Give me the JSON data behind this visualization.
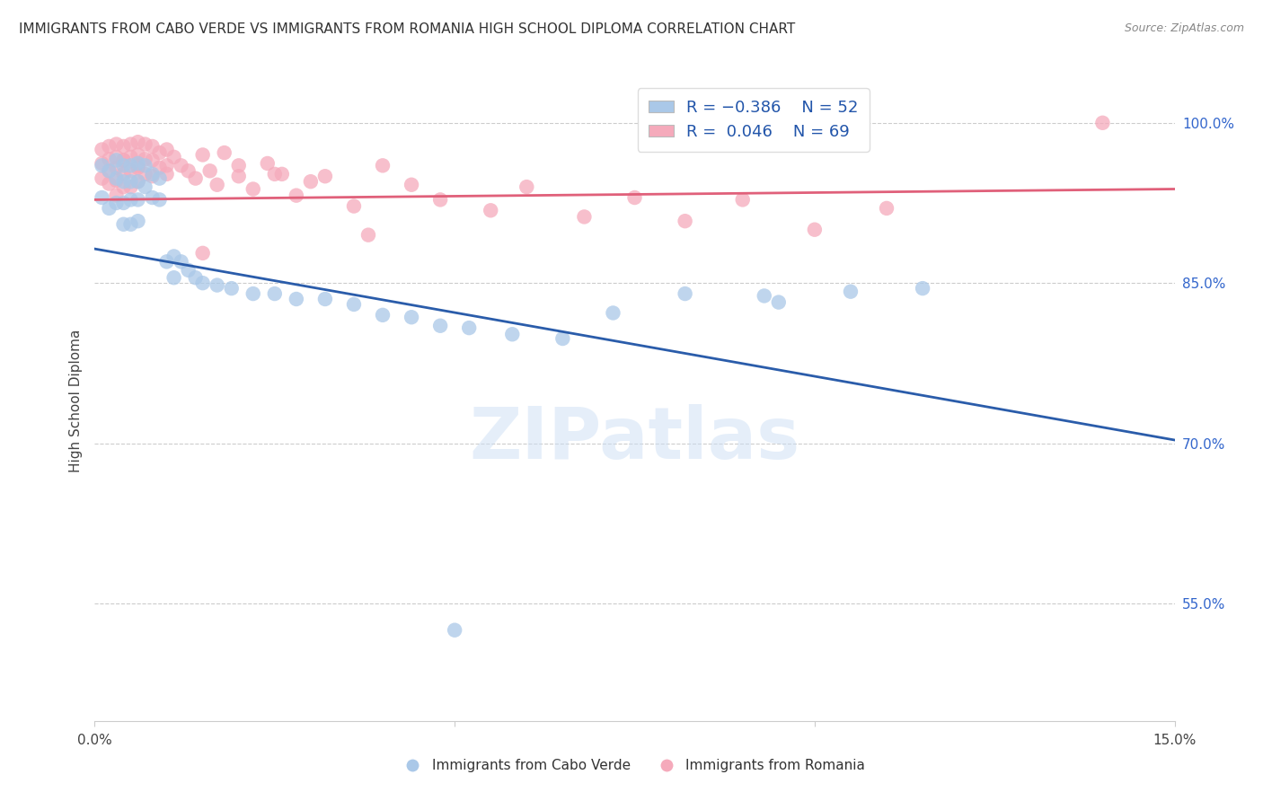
{
  "title": "IMMIGRANTS FROM CABO VERDE VS IMMIGRANTS FROM ROMANIA HIGH SCHOOL DIPLOMA CORRELATION CHART",
  "source": "Source: ZipAtlas.com",
  "ylabel": "High School Diploma",
  "yticks": [
    0.55,
    0.7,
    0.85,
    1.0
  ],
  "ytick_labels": [
    "55.0%",
    "70.0%",
    "85.0%",
    "100.0%"
  ],
  "xlim": [
    0.0,
    0.15
  ],
  "ylim": [
    0.44,
    1.04
  ],
  "legend_blue_r": "R = −0.386",
  "legend_blue_n": "N = 52",
  "legend_pink_r": "R =  0.046",
  "legend_pink_n": "N = 69",
  "legend_blue_label": "Immigrants from Cabo Verde",
  "legend_pink_label": "Immigrants from Romania",
  "blue_color": "#aac8e8",
  "pink_color": "#f5aabb",
  "blue_line_color": "#2a5caa",
  "pink_line_color": "#e0607a",
  "watermark_text": "ZIPatlas",
  "blue_line_x": [
    0.0,
    0.15
  ],
  "blue_line_y": [
    0.882,
    0.703
  ],
  "pink_line_x": [
    0.0,
    0.15
  ],
  "pink_line_y": [
    0.928,
    0.938
  ],
  "cabo_verde_x": [
    0.001,
    0.001,
    0.002,
    0.002,
    0.003,
    0.003,
    0.003,
    0.004,
    0.004,
    0.004,
    0.004,
    0.005,
    0.005,
    0.005,
    0.005,
    0.006,
    0.006,
    0.006,
    0.006,
    0.007,
    0.007,
    0.008,
    0.008,
    0.009,
    0.009,
    0.01,
    0.011,
    0.011,
    0.012,
    0.013,
    0.014,
    0.015,
    0.017,
    0.019,
    0.022,
    0.025,
    0.028,
    0.032,
    0.036,
    0.04,
    0.044,
    0.048,
    0.052,
    0.05,
    0.058,
    0.065,
    0.072,
    0.082,
    0.093,
    0.095,
    0.105,
    0.115
  ],
  "cabo_verde_y": [
    0.96,
    0.93,
    0.955,
    0.92,
    0.965,
    0.948,
    0.925,
    0.96,
    0.945,
    0.925,
    0.905,
    0.96,
    0.945,
    0.928,
    0.905,
    0.962,
    0.945,
    0.928,
    0.908,
    0.96,
    0.94,
    0.952,
    0.93,
    0.948,
    0.928,
    0.87,
    0.875,
    0.855,
    0.87,
    0.862,
    0.855,
    0.85,
    0.848,
    0.845,
    0.84,
    0.84,
    0.835,
    0.835,
    0.83,
    0.82,
    0.818,
    0.81,
    0.808,
    0.525,
    0.802,
    0.798,
    0.822,
    0.84,
    0.838,
    0.832,
    0.842,
    0.845
  ],
  "romania_x": [
    0.001,
    0.001,
    0.001,
    0.002,
    0.002,
    0.002,
    0.002,
    0.003,
    0.003,
    0.003,
    0.003,
    0.003,
    0.004,
    0.004,
    0.004,
    0.004,
    0.005,
    0.005,
    0.005,
    0.005,
    0.006,
    0.006,
    0.006,
    0.006,
    0.007,
    0.007,
    0.007,
    0.008,
    0.008,
    0.008,
    0.009,
    0.009,
    0.01,
    0.01,
    0.011,
    0.012,
    0.013,
    0.014,
    0.015,
    0.016,
    0.017,
    0.018,
    0.02,
    0.022,
    0.024,
    0.026,
    0.028,
    0.032,
    0.036,
    0.04,
    0.044,
    0.048,
    0.055,
    0.06,
    0.068,
    0.075,
    0.082,
    0.09,
    0.1,
    0.11,
    0.038,
    0.03,
    0.025,
    0.02,
    0.015,
    0.01,
    0.006,
    0.004,
    0.14
  ],
  "romania_y": [
    0.975,
    0.962,
    0.948,
    0.978,
    0.966,
    0.955,
    0.943,
    0.98,
    0.968,
    0.958,
    0.946,
    0.932,
    0.978,
    0.965,
    0.952,
    0.94,
    0.98,
    0.968,
    0.955,
    0.94,
    0.982,
    0.97,
    0.958,
    0.945,
    0.98,
    0.966,
    0.952,
    0.978,
    0.965,
    0.95,
    0.972,
    0.958,
    0.975,
    0.96,
    0.968,
    0.96,
    0.955,
    0.948,
    0.97,
    0.955,
    0.942,
    0.972,
    0.95,
    0.938,
    0.962,
    0.952,
    0.932,
    0.95,
    0.922,
    0.96,
    0.942,
    0.928,
    0.918,
    0.94,
    0.912,
    0.93,
    0.908,
    0.928,
    0.9,
    0.92,
    0.895,
    0.945,
    0.952,
    0.96,
    0.878,
    0.952,
    0.96,
    0.965,
    1.0
  ]
}
